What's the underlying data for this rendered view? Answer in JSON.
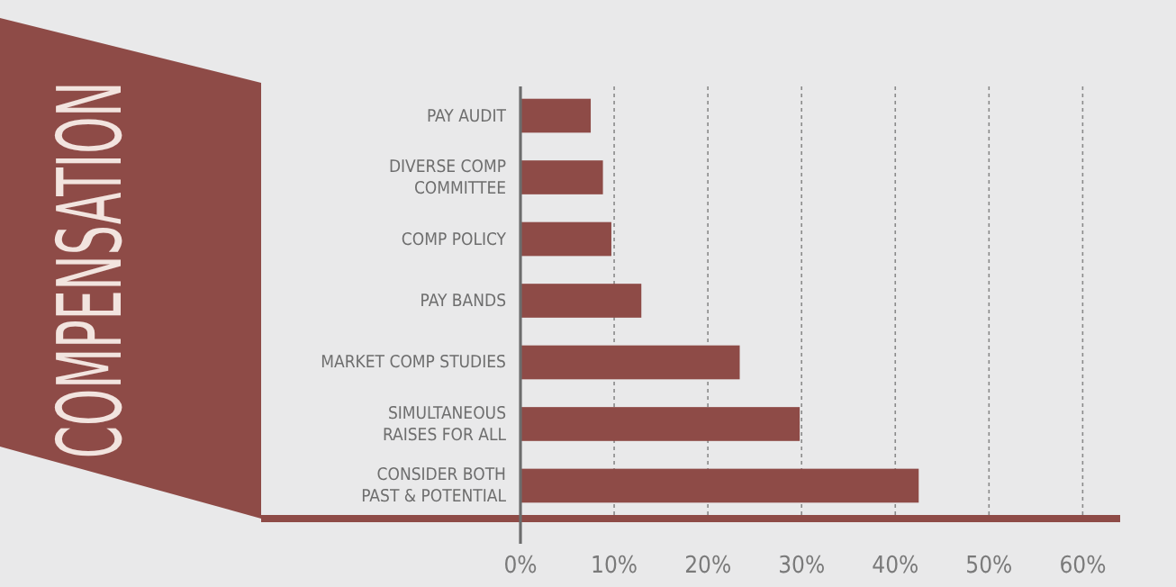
{
  "chart_data": {
    "type": "bar",
    "orientation": "horizontal",
    "title": "COMPENSATION",
    "categories": [
      "PAY AUDIT",
      "DIVERSE COMP COMMITTEE",
      "COMP POLICY",
      "PAY BANDS",
      "MARKET COMP STUDIES",
      "SIMULTANEOUS RAISES FOR ALL",
      "CONSIDER BOTH PAST & POTENTIAL"
    ],
    "values": [
      7.5,
      8.8,
      9.7,
      12.9,
      23.4,
      29.8,
      42.5
    ],
    "color": "#8e4b47",
    "xlim": [
      0,
      64
    ],
    "xticks": [
      {
        "value": 0,
        "label": "0%"
      },
      {
        "value": 10,
        "label": "10%"
      },
      {
        "value": 20,
        "label": "20%"
      },
      {
        "value": 30,
        "label": "30%"
      },
      {
        "value": 40,
        "label": "40%"
      },
      {
        "value": 50,
        "label": "50%"
      },
      {
        "value": 60,
        "label": "60%"
      }
    ],
    "grid": "x"
  }
}
